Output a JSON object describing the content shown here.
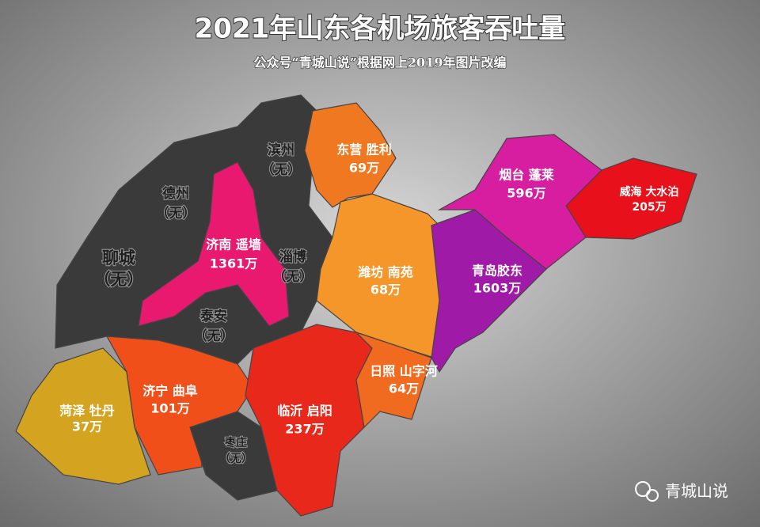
{
  "title": "2021年山东各机场旅客吞吐量",
  "subtitle": "公众号“青城山说”根据网上2019年图片改编",
  "regions": [
    {
      "lines": [
        "东营 胜利",
        "69万"
      ]
    },
    {
      "lines": [
        "滨州",
        "（无）"
      ]
    },
    {
      "lines": [
        "德州",
        "（无）"
      ]
    },
    {
      "lines": [
        "聊城",
        "（无）"
      ]
    },
    {
      "lines": [
        "济南 遥墙",
        "1361万"
      ]
    },
    {
      "lines": [
        "淄博",
        "（无）"
      ]
    },
    {
      "lines": [
        "潍坊 南苑",
        "68万"
      ]
    },
    {
      "lines": [
        "青岛胶东",
        "1603万"
      ]
    },
    {
      "lines": [
        "烟台 蓬莱",
        "596万"
      ]
    },
    {
      "lines": [
        "威海 大水泊",
        "205万"
      ]
    },
    {
      "lines": [
        "泰安",
        "（无）"
      ]
    },
    {
      "lines": [
        "菏泽 牡丹",
        "37万"
      ]
    },
    {
      "lines": [
        "济宁 曲阜",
        "101万"
      ]
    },
    {
      "lines": [
        "日照 山字河",
        "64万"
      ]
    },
    {
      "lines": [
        "临沂 启阳",
        "237万"
      ]
    },
    {
      "lines": [
        "枣庄",
        "（无）"
      ]
    }
  ],
  "watermark": "青城山说"
}
